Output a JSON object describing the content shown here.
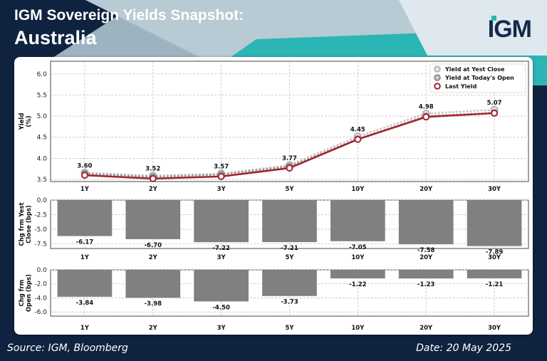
{
  "header": {
    "title": "IGM Sovereign Yields Snapshot:",
    "subtitle": "Australia",
    "logo": "IGM"
  },
  "footer": {
    "source": "Source: IGM, Bloomberg",
    "date": "Date: 20 May 2025"
  },
  "colors": {
    "navy": "#0f2340",
    "teal": "#2cb5b5",
    "light_blue": "#9db4c0",
    "last_yield": "#a3232b",
    "bars": "#808080"
  },
  "chart_data": [
    {
      "type": "line",
      "categories": [
        "1Y",
        "2Y",
        "3Y",
        "5Y",
        "10Y",
        "20Y",
        "30Y"
      ],
      "ylabel": "Yield\n(%)",
      "ylim": [
        3.45,
        6.3
      ],
      "yticks": [
        3.5,
        4.0,
        4.5,
        5.0,
        5.5,
        6.0
      ],
      "ytick_labels": [
        "3.5",
        "4.0",
        "4.5",
        "5.0",
        "5.5",
        "6.0"
      ],
      "grid": true,
      "legend_position": "top-right",
      "series": [
        {
          "name": "Yield at Yest Close",
          "values": [
            3.66,
            3.59,
            3.64,
            3.84,
            4.52,
            5.06,
            5.15
          ]
        },
        {
          "name": "Yield at Today's Open",
          "values": [
            3.64,
            3.56,
            3.615,
            3.81,
            4.46,
            5.0,
            5.08
          ]
        },
        {
          "name": "Last Yield",
          "values": [
            3.6,
            3.52,
            3.57,
            3.77,
            4.45,
            4.98,
            5.07
          ]
        }
      ],
      "data_labels": [
        "3.60",
        "3.52",
        "3.57",
        "3.77",
        "4.45",
        "4.98",
        "5.07"
      ]
    },
    {
      "type": "bar",
      "categories": [
        "1Y",
        "2Y",
        "3Y",
        "5Y",
        "10Y",
        "20Y",
        "30Y"
      ],
      "ylabel": "Chg frm Yest\nClose (bps)",
      "ylim": [
        -8.3,
        0
      ],
      "yticks": [
        0,
        -2.5,
        -5.0,
        -7.5
      ],
      "ytick_labels": [
        "0.0",
        "-2.5",
        "-5.0",
        "-7.5"
      ],
      "grid": true,
      "values": [
        -6.17,
        -6.7,
        -7.22,
        -7.21,
        -7.05,
        -7.58,
        -7.89
      ],
      "data_labels": [
        "-6.17",
        "-6.70",
        "-7.22",
        "-7.21",
        "-7.05",
        "-7.58",
        "-7.89"
      ]
    },
    {
      "type": "bar",
      "categories": [
        "1Y",
        "2Y",
        "3Y",
        "5Y",
        "10Y",
        "20Y",
        "30Y"
      ],
      "ylabel": "Chg frm\nOpen (bps)",
      "ylim": [
        -6.6,
        0
      ],
      "yticks": [
        0,
        -2.0,
        -4.0,
        -6.0
      ],
      "ytick_labels": [
        "0.0",
        "-2.0",
        "-4.0",
        "-6.0"
      ],
      "grid": true,
      "values": [
        -3.84,
        -3.98,
        -4.5,
        -3.73,
        -1.22,
        -1.23,
        -1.21
      ],
      "data_labels": [
        "-3.84",
        "-3.98",
        "-4.50",
        "-3.73",
        "-1.22",
        "-1.23",
        "-1.21"
      ]
    }
  ]
}
